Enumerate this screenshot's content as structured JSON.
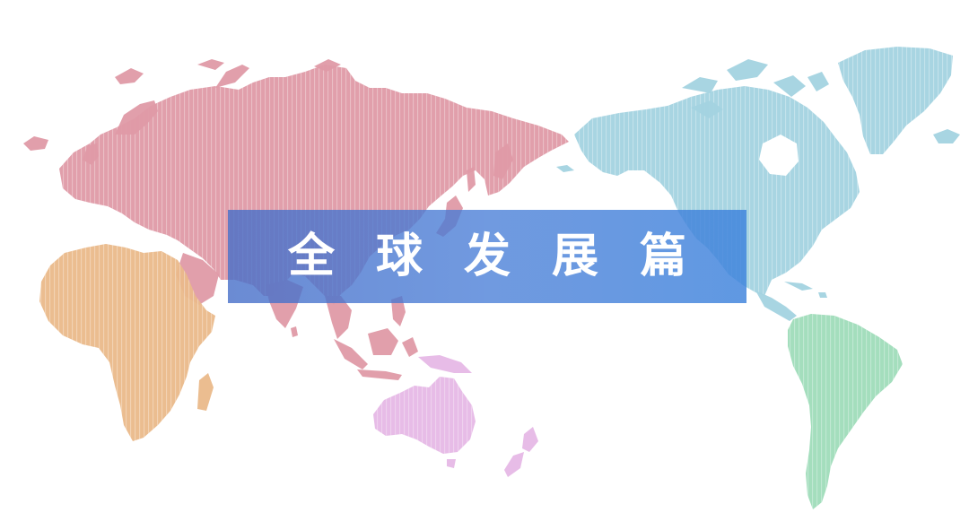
{
  "title": "全球发展篇",
  "colors": {
    "asia_europe": "#df9aa7",
    "africa": "#eab98a",
    "oceania": "#e6b8e6",
    "north_america": "#a3d3e0",
    "south_america": "#9fdcb9",
    "banner": "#5a86d8",
    "banner_text": "#ffffff"
  },
  "regions": [
    "eurasia",
    "africa",
    "oceania",
    "north-america",
    "greenland",
    "south-america"
  ]
}
